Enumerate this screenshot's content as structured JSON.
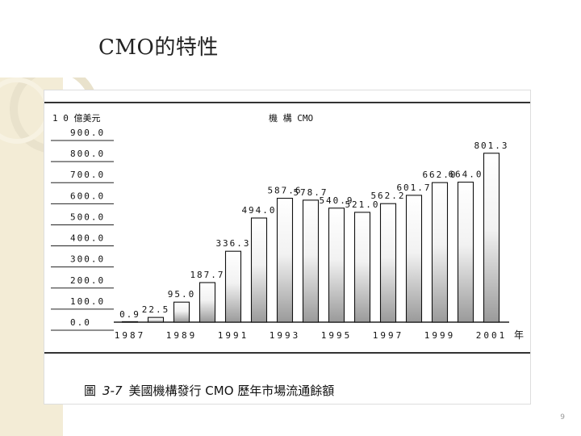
{
  "slide": {
    "title": "CMO的特性",
    "caption_prefix": "圖",
    "caption_number": "3-7",
    "caption_text": "美國機構發行 CMO 歷年市場流通餘額",
    "page_number": "9"
  },
  "chart_data": {
    "type": "bar",
    "title": "機 構 CMO",
    "ylabel": "1 0 億美元",
    "xlabel": "",
    "x_unit_label": "年",
    "ylim": [
      0,
      900
    ],
    "yticks": [
      "900.0",
      "800.0",
      "700.0",
      "600.0",
      "500.0",
      "400.0",
      "300.0",
      "200.0",
      "100.0",
      "0.0"
    ],
    "ytick_values": [
      900,
      800,
      700,
      600,
      500,
      400,
      300,
      200,
      100,
      0
    ],
    "categories": [
      "1987",
      "1988",
      "1989",
      "1990",
      "1991",
      "1992",
      "1993",
      "1994",
      "1995",
      "1996",
      "1997",
      "1998",
      "1999",
      "2000",
      "2001"
    ],
    "xtick_labels": [
      "1987",
      "",
      "1989",
      "",
      "1991",
      "",
      "1993",
      "",
      "1995",
      "",
      "1997",
      "",
      "1999",
      "",
      "2001"
    ],
    "values": [
      0.9,
      22.5,
      95.0,
      187.7,
      336.3,
      494.0,
      587.6,
      578.7,
      540.9,
      521.0,
      562.2,
      601.7,
      662.0,
      664.0,
      801.3
    ],
    "value_labels": [
      "0.9",
      "22.5",
      "95.0",
      "187.7",
      "336.3",
      "494.0",
      "587.6",
      "578.7",
      "540.9",
      "521.0",
      "562.2",
      "601.7",
      "662.0",
      "664.0",
      "801.3"
    ],
    "grid": false
  }
}
